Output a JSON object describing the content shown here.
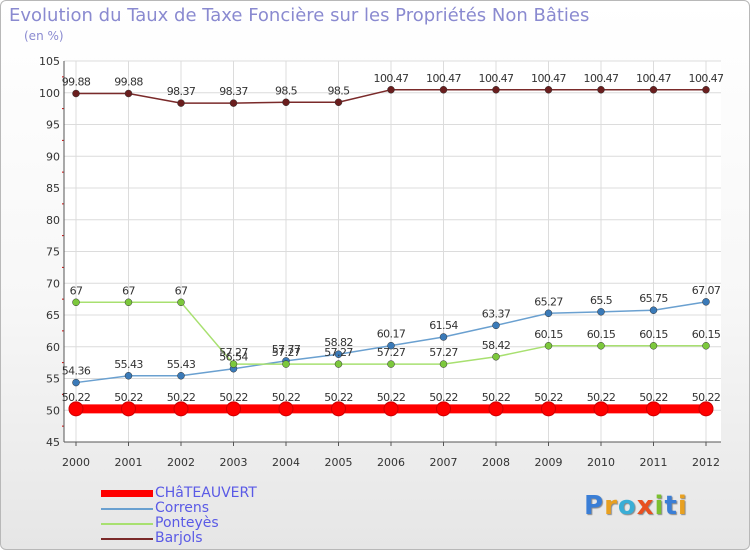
{
  "title": "Evolution du Taux de Taxe Foncière sur les Propriétés Non Bâties",
  "subtitle": "(en %)",
  "brand": {
    "text": "Proxiti",
    "letters": [
      {
        "ch": "P",
        "color": "#3a7ed6"
      },
      {
        "ch": "r",
        "color": "#e8a020"
      },
      {
        "ch": "o",
        "color": "#3aaed6"
      },
      {
        "ch": "x",
        "color": "#e85020"
      },
      {
        "ch": "i",
        "color": "#7cc030"
      },
      {
        "ch": "t",
        "color": "#3a7ed6"
      },
      {
        "ch": "i",
        "color": "#e8a020"
      }
    ]
  },
  "chart_data": {
    "type": "line",
    "title": "Evolution du Taux de Taxe Foncière sur les Propriétés Non Bâties",
    "ylabel": "(en %)",
    "xlabel": "",
    "categories": [
      "2000",
      "2001",
      "2002",
      "2003",
      "2004",
      "2005",
      "2006",
      "2007",
      "2008",
      "2009",
      "2010",
      "2011",
      "2012"
    ],
    "ylim": [
      45,
      105
    ],
    "yticks": [
      "45",
      "50",
      "55",
      "60",
      "65",
      "70",
      "75",
      "80",
      "85",
      "90",
      "95",
      "100",
      "105"
    ],
    "grid": true,
    "legend_position": "bottom-left",
    "series": [
      {
        "name": "CHâTEAUVERT",
        "color": "#ff0000",
        "emphasis": true,
        "values": [
          50.22,
          50.22,
          50.22,
          50.22,
          50.22,
          50.22,
          50.22,
          50.22,
          50.22,
          50.22,
          50.22,
          50.22,
          50.22
        ],
        "labels": [
          "50.22",
          "50.22",
          "50.22",
          "50.22",
          "50.22",
          "50.22",
          "50.22",
          "50.22",
          "50.22",
          "50.22",
          "50.22",
          "50.22",
          "50.22"
        ]
      },
      {
        "name": "Correns",
        "color": "#6aa0d0",
        "marker": "#3a7ab8",
        "values": [
          54.36,
          55.43,
          55.43,
          56.54,
          57.77,
          58.82,
          60.17,
          61.54,
          63.37,
          65.27,
          65.5,
          65.75,
          67.07
        ],
        "labels": [
          "54.36",
          "55.43",
          "55.43",
          "56.54",
          "57.77",
          "58.82",
          "60.17",
          "61.54",
          "63.37",
          "65.27",
          "65.5",
          "65.75",
          "67.07"
        ]
      },
      {
        "name": "Ponteyès",
        "color": "#a8e070",
        "marker": "#7cc83c",
        "values": [
          67,
          67,
          67,
          57.27,
          57.27,
          57.27,
          57.27,
          57.27,
          58.42,
          60.15,
          60.15,
          60.15,
          60.15
        ],
        "labels": [
          "67",
          "67",
          "67",
          "57.27",
          "57.27",
          "57.27",
          "57.27",
          "57.27",
          "58.42",
          "60.15",
          "60.15",
          "60.15",
          "60.15"
        ]
      },
      {
        "name": "Barjols",
        "color": "#7a2a2a",
        "marker": "#6a1e1e",
        "values": [
          99.88,
          99.88,
          98.37,
          98.37,
          98.5,
          98.5,
          100.47,
          100.47,
          100.47,
          100.47,
          100.47,
          100.47,
          100.47
        ],
        "labels": [
          "99.88",
          "99.88",
          "98.37",
          "98.37",
          "98.5",
          "98.5",
          "100.47",
          "100.47",
          "100.47",
          "100.47",
          "100.47",
          "100.47",
          "100.47"
        ]
      }
    ]
  }
}
